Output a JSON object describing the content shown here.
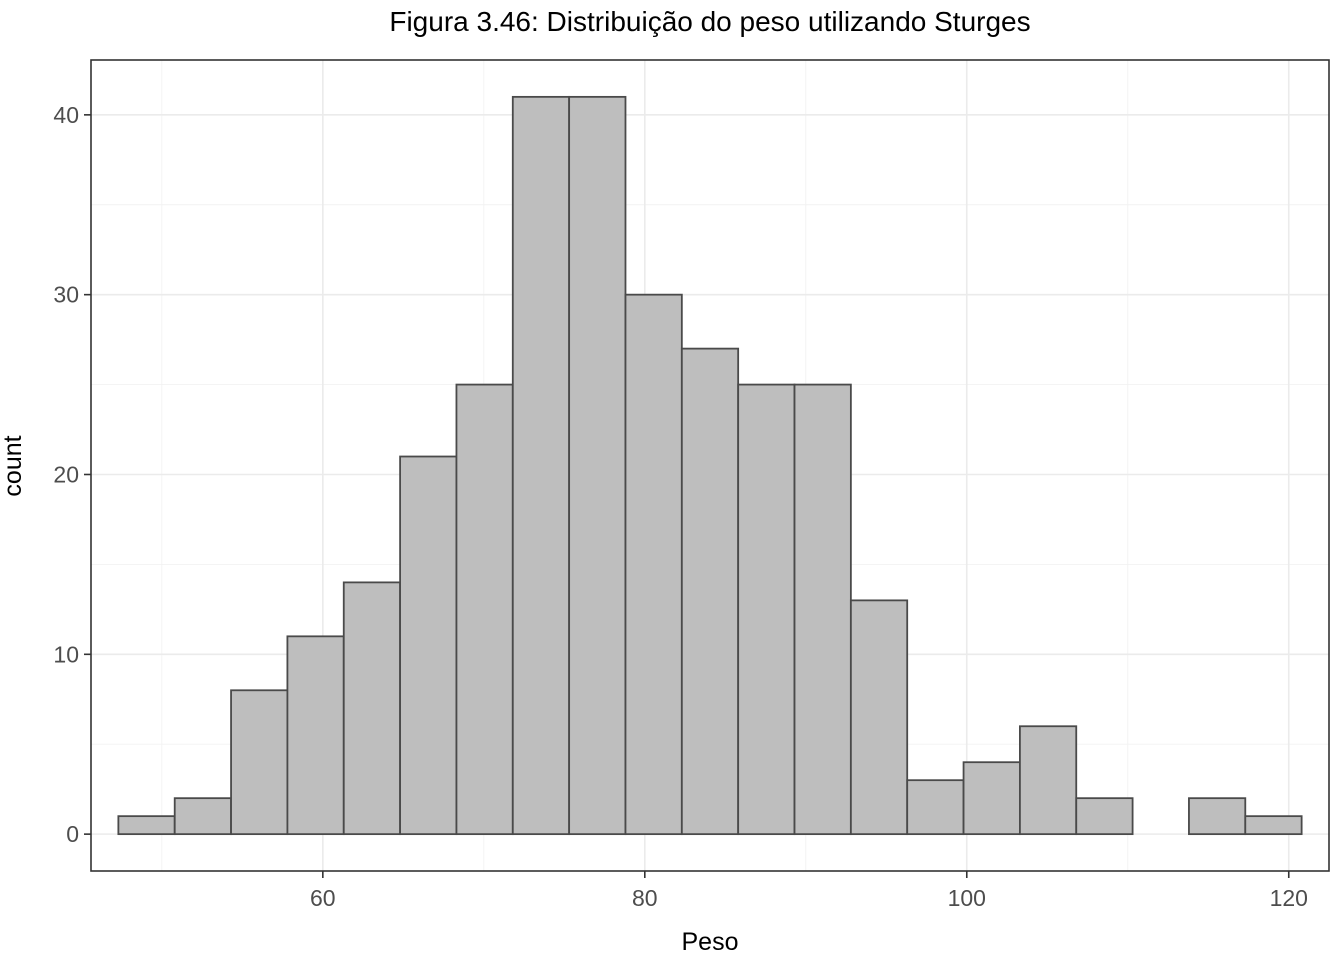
{
  "chart_data": {
    "type": "bar",
    "title": "Figura 3.46: Distribuição do peso utilizando Sturges",
    "xlabel": "Peso",
    "ylabel": "count",
    "bin_edges": [
      47.3,
      50.8,
      54.3,
      57.8,
      61.3,
      64.8,
      68.3,
      71.8,
      75.3,
      78.8,
      82.3,
      85.8,
      89.3,
      92.8,
      96.3,
      99.8,
      103.3,
      106.8,
      110.3,
      113.8,
      117.3,
      120.8
    ],
    "values": [
      1,
      2,
      8,
      11,
      14,
      21,
      25,
      41,
      41,
      30,
      27,
      25,
      25,
      13,
      3,
      4,
      6,
      2,
      0,
      2,
      1
    ],
    "xlim": [
      45.6,
      122.5
    ],
    "ylim": [
      -2.05,
      43.05
    ],
    "x_ticks": [
      60,
      80,
      100,
      120
    ],
    "y_ticks": [
      0,
      10,
      20,
      30,
      40
    ],
    "x_minor_ticks": [
      50,
      70,
      90,
      110
    ],
    "y_minor_ticks": [
      5,
      15,
      25,
      35
    ],
    "grid": true,
    "colors": {
      "bar_fill": "#bebebe",
      "bar_stroke": "#4a4a4a"
    }
  }
}
